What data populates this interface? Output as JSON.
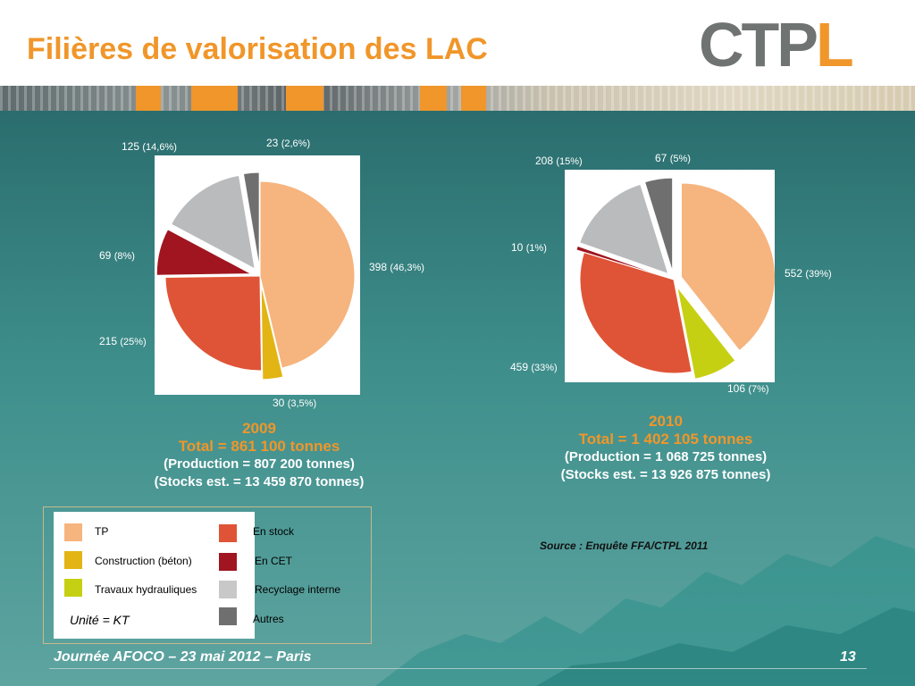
{
  "title": "Filières de valorisation des LAC",
  "logo": {
    "text_gray": "CTP",
    "text_orange": "L"
  },
  "colors": {
    "tp": "#f6b47e",
    "construction": "#e2b414",
    "travaux": "#c6d012",
    "en_stock": "#df5436",
    "en_cet": "#a0151f",
    "recyclage": "#b9bbbd",
    "autres": "#6f6f6f"
  },
  "chart_data": [
    {
      "type": "pie",
      "title": "2009",
      "total": "Total = 861 100 tonnes",
      "production": "(Production = 807 200 tonnes)",
      "stocks": "(Stocks est. = 13 459 870 tonnes)",
      "unit": "KT",
      "slices": [
        {
          "name": "TP",
          "value": 398,
          "value_label": "398",
          "pct": "(46,3%)",
          "exploded": false
        },
        {
          "name": "Construction (béton)",
          "value": 30,
          "value_label": "30",
          "pct": "(3,5%)",
          "exploded": true
        },
        {
          "name": "En stock",
          "value": 215,
          "value_label": "215",
          "pct": "(25%)",
          "exploded": false
        },
        {
          "name": "En CET",
          "value": 69,
          "value_label": "69",
          "pct": "(8%)",
          "exploded": true
        },
        {
          "name": "Recyclage interne",
          "value": 125,
          "value_label": "125",
          "pct": "(14,6%)",
          "exploded": true
        },
        {
          "name": "Autres",
          "value": 23,
          "value_label": "23",
          "pct": "(2,6%)",
          "exploded": true
        }
      ]
    },
    {
      "type": "pie",
      "title": "2010",
      "total": "Total = 1 402 105 tonnes",
      "production": "(Production = 1 068 725 tonnes)",
      "stocks": "(Stocks est. = 13 926 875 tonnes)",
      "unit": "KT",
      "slices": [
        {
          "name": "TP",
          "value": 552,
          "value_label": "552",
          "pct": "(39%)",
          "exploded": true
        },
        {
          "name": "Travaux hydrauliques",
          "value": 106,
          "value_label": "106",
          "pct": "(7%)",
          "exploded": true
        },
        {
          "name": "En stock",
          "value": 459,
          "value_label": "459",
          "pct": "(33%)",
          "exploded": false
        },
        {
          "name": "En CET",
          "value": 10,
          "value_label": "10",
          "pct": "(1%)",
          "exploded": true
        },
        {
          "name": "Recyclage interne",
          "value": 208,
          "value_label": "208",
          "pct": "(15%)",
          "exploded": true
        },
        {
          "name": "Autres",
          "value": 67,
          "value_label": "67",
          "pct": "(5%)",
          "exploded": true
        }
      ]
    }
  ],
  "legend": {
    "items": [
      {
        "label": "TP",
        "color": "#f6b47e"
      },
      {
        "label": "Construction (béton)",
        "color": "#e2b414"
      },
      {
        "label": "Travaux hydrauliques",
        "color": "#c6d012"
      },
      {
        "label": "En stock",
        "color": "#df5436"
      },
      {
        "label": "En CET",
        "color": "#a0151f"
      },
      {
        "label": "Recyclage interne",
        "color": "#c8c8c8"
      },
      {
        "label": "Autres",
        "color": "#6f6f6f"
      }
    ],
    "unit_label": "Unité = KT"
  },
  "source": "Source : Enquête FFA/CTPL 2011",
  "footer": "Journée AFOCO – 23 mai 2012 – Paris",
  "page_number": "13"
}
